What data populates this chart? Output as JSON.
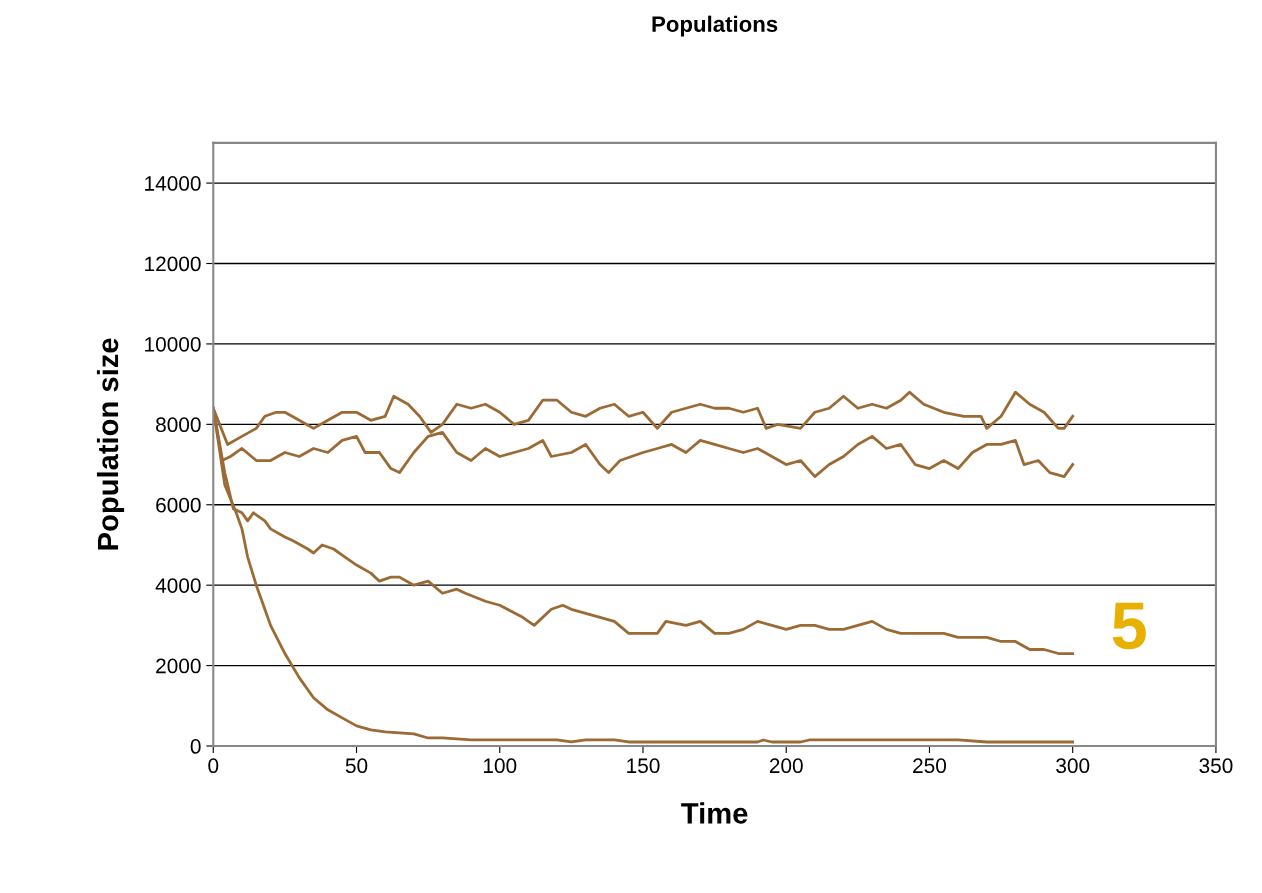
{
  "chart_data": {
    "type": "line",
    "title": "Populations",
    "xlabel": "Time",
    "ylabel": "Population size",
    "xlim": [
      0,
      350
    ],
    "xticks": [
      0,
      50,
      100,
      150,
      200,
      250,
      300,
      350
    ],
    "ylim": [
      0,
      15000
    ],
    "yticks": [
      0,
      2000,
      4000,
      6000,
      8000,
      10000,
      12000,
      14000
    ],
    "grid": "y",
    "marker": "none",
    "line_style": "solid",
    "annotations": [
      "5"
    ],
    "series": [
      {
        "color": "#9c6a35",
        "x": [
          0,
          5,
          10,
          15,
          18,
          22,
          25,
          30,
          35,
          40,
          45,
          50,
          55,
          60,
          63,
          68,
          72,
          76,
          80,
          85,
          90,
          95,
          100,
          105,
          110,
          115,
          120,
          125,
          130,
          135,
          140,
          145,
          150,
          155,
          160,
          165,
          170,
          175,
          180,
          185,
          190,
          193,
          197,
          205,
          210,
          215,
          220,
          225,
          230,
          235,
          240,
          243,
          248,
          255,
          262,
          268,
          270,
          275,
          280,
          285,
          290,
          295,
          297,
          300
        ],
        "values": [
          8400,
          7500,
          7700,
          7900,
          8200,
          8300,
          8300,
          8100,
          7900,
          8100,
          8300,
          8300,
          8100,
          8200,
          8700,
          8500,
          8200,
          7800,
          8000,
          8500,
          8400,
          8500,
          8300,
          8000,
          8100,
          8600,
          8600,
          8300,
          8200,
          8400,
          8500,
          8200,
          8300,
          7900,
          8300,
          8400,
          8500,
          8400,
          8400,
          8300,
          8400,
          7900,
          8000,
          7900,
          8300,
          8400,
          8700,
          8400,
          8500,
          8400,
          8600,
          8800,
          8500,
          8300,
          8200,
          8200,
          7900,
          8200,
          8800,
          8500,
          8300,
          7900,
          7900,
          8200
        ]
      },
      {
        "color": "#9c6a35",
        "x": [
          0,
          3,
          6,
          10,
          15,
          20,
          25,
          30,
          35,
          40,
          45,
          50,
          53,
          58,
          62,
          65,
          70,
          75,
          80,
          85,
          90,
          95,
          100,
          105,
          110,
          115,
          118,
          125,
          130,
          135,
          138,
          142,
          150,
          155,
          160,
          165,
          170,
          175,
          180,
          185,
          190,
          195,
          200,
          205,
          210,
          215,
          220,
          225,
          230,
          235,
          240,
          245,
          250,
          255,
          260,
          265,
          270,
          275,
          280,
          283,
          288,
          292,
          297,
          300
        ],
        "values": [
          8400,
          7100,
          7200,
          7400,
          7100,
          7100,
          7300,
          7200,
          7400,
          7300,
          7600,
          7700,
          7300,
          7300,
          6900,
          6800,
          7300,
          7700,
          7800,
          7300,
          7100,
          7400,
          7200,
          7300,
          7400,
          7600,
          7200,
          7300,
          7500,
          7000,
          6800,
          7100,
          7300,
          7400,
          7500,
          7300,
          7600,
          7500,
          7400,
          7300,
          7400,
          7200,
          7000,
          7100,
          6700,
          7000,
          7200,
          7500,
          7700,
          7400,
          7500,
          7000,
          6900,
          7100,
          6900,
          7300,
          7500,
          7500,
          7600,
          7000,
          7100,
          6800,
          6700,
          7000
        ]
      },
      {
        "color": "#9c6a35",
        "x": [
          0,
          4,
          7,
          10,
          12,
          14,
          18,
          20,
          25,
          28,
          33,
          35,
          38,
          42,
          46,
          50,
          55,
          58,
          62,
          65,
          70,
          75,
          80,
          85,
          88,
          95,
          100,
          108,
          112,
          118,
          122,
          125,
          130,
          135,
          140,
          145,
          150,
          155,
          158,
          165,
          170,
          175,
          180,
          185,
          190,
          195,
          200,
          205,
          210,
          215,
          220,
          225,
          230,
          235,
          240,
          250,
          255,
          260,
          265,
          270,
          275,
          280,
          285,
          290,
          295,
          300
        ],
        "values": [
          8400,
          6800,
          5900,
          5800,
          5600,
          5800,
          5600,
          5400,
          5200,
          5100,
          4900,
          4800,
          5000,
          4900,
          4700,
          4500,
          4300,
          4100,
          4200,
          4200,
          4000,
          4100,
          3800,
          3900,
          3800,
          3600,
          3500,
          3200,
          3000,
          3400,
          3500,
          3400,
          3300,
          3200,
          3100,
          2800,
          2800,
          2800,
          3100,
          3000,
          3100,
          2800,
          2800,
          2900,
          3100,
          3000,
          2900,
          3000,
          3000,
          2900,
          2900,
          3000,
          3100,
          2900,
          2800,
          2800,
          2800,
          2700,
          2700,
          2700,
          2600,
          2600,
          2400,
          2400,
          2300,
          2300
        ]
      },
      {
        "color": "#9c6a35",
        "x": [
          0,
          4,
          8,
          10,
          12,
          15,
          18,
          20,
          25,
          30,
          35,
          40,
          45,
          50,
          55,
          60,
          70,
          75,
          80,
          90,
          100,
          120,
          125,
          130,
          140,
          145,
          190,
          192,
          195,
          205,
          208,
          260,
          270,
          300
        ],
        "values": [
          8400,
          6500,
          5800,
          5400,
          4700,
          4000,
          3400,
          3000,
          2300,
          1700,
          1200,
          900,
          700,
          500,
          400,
          350,
          300,
          200,
          200,
          150,
          150,
          150,
          100,
          150,
          150,
          100,
          100,
          150,
          100,
          100,
          150,
          150,
          100,
          100
        ]
      }
    ]
  }
}
